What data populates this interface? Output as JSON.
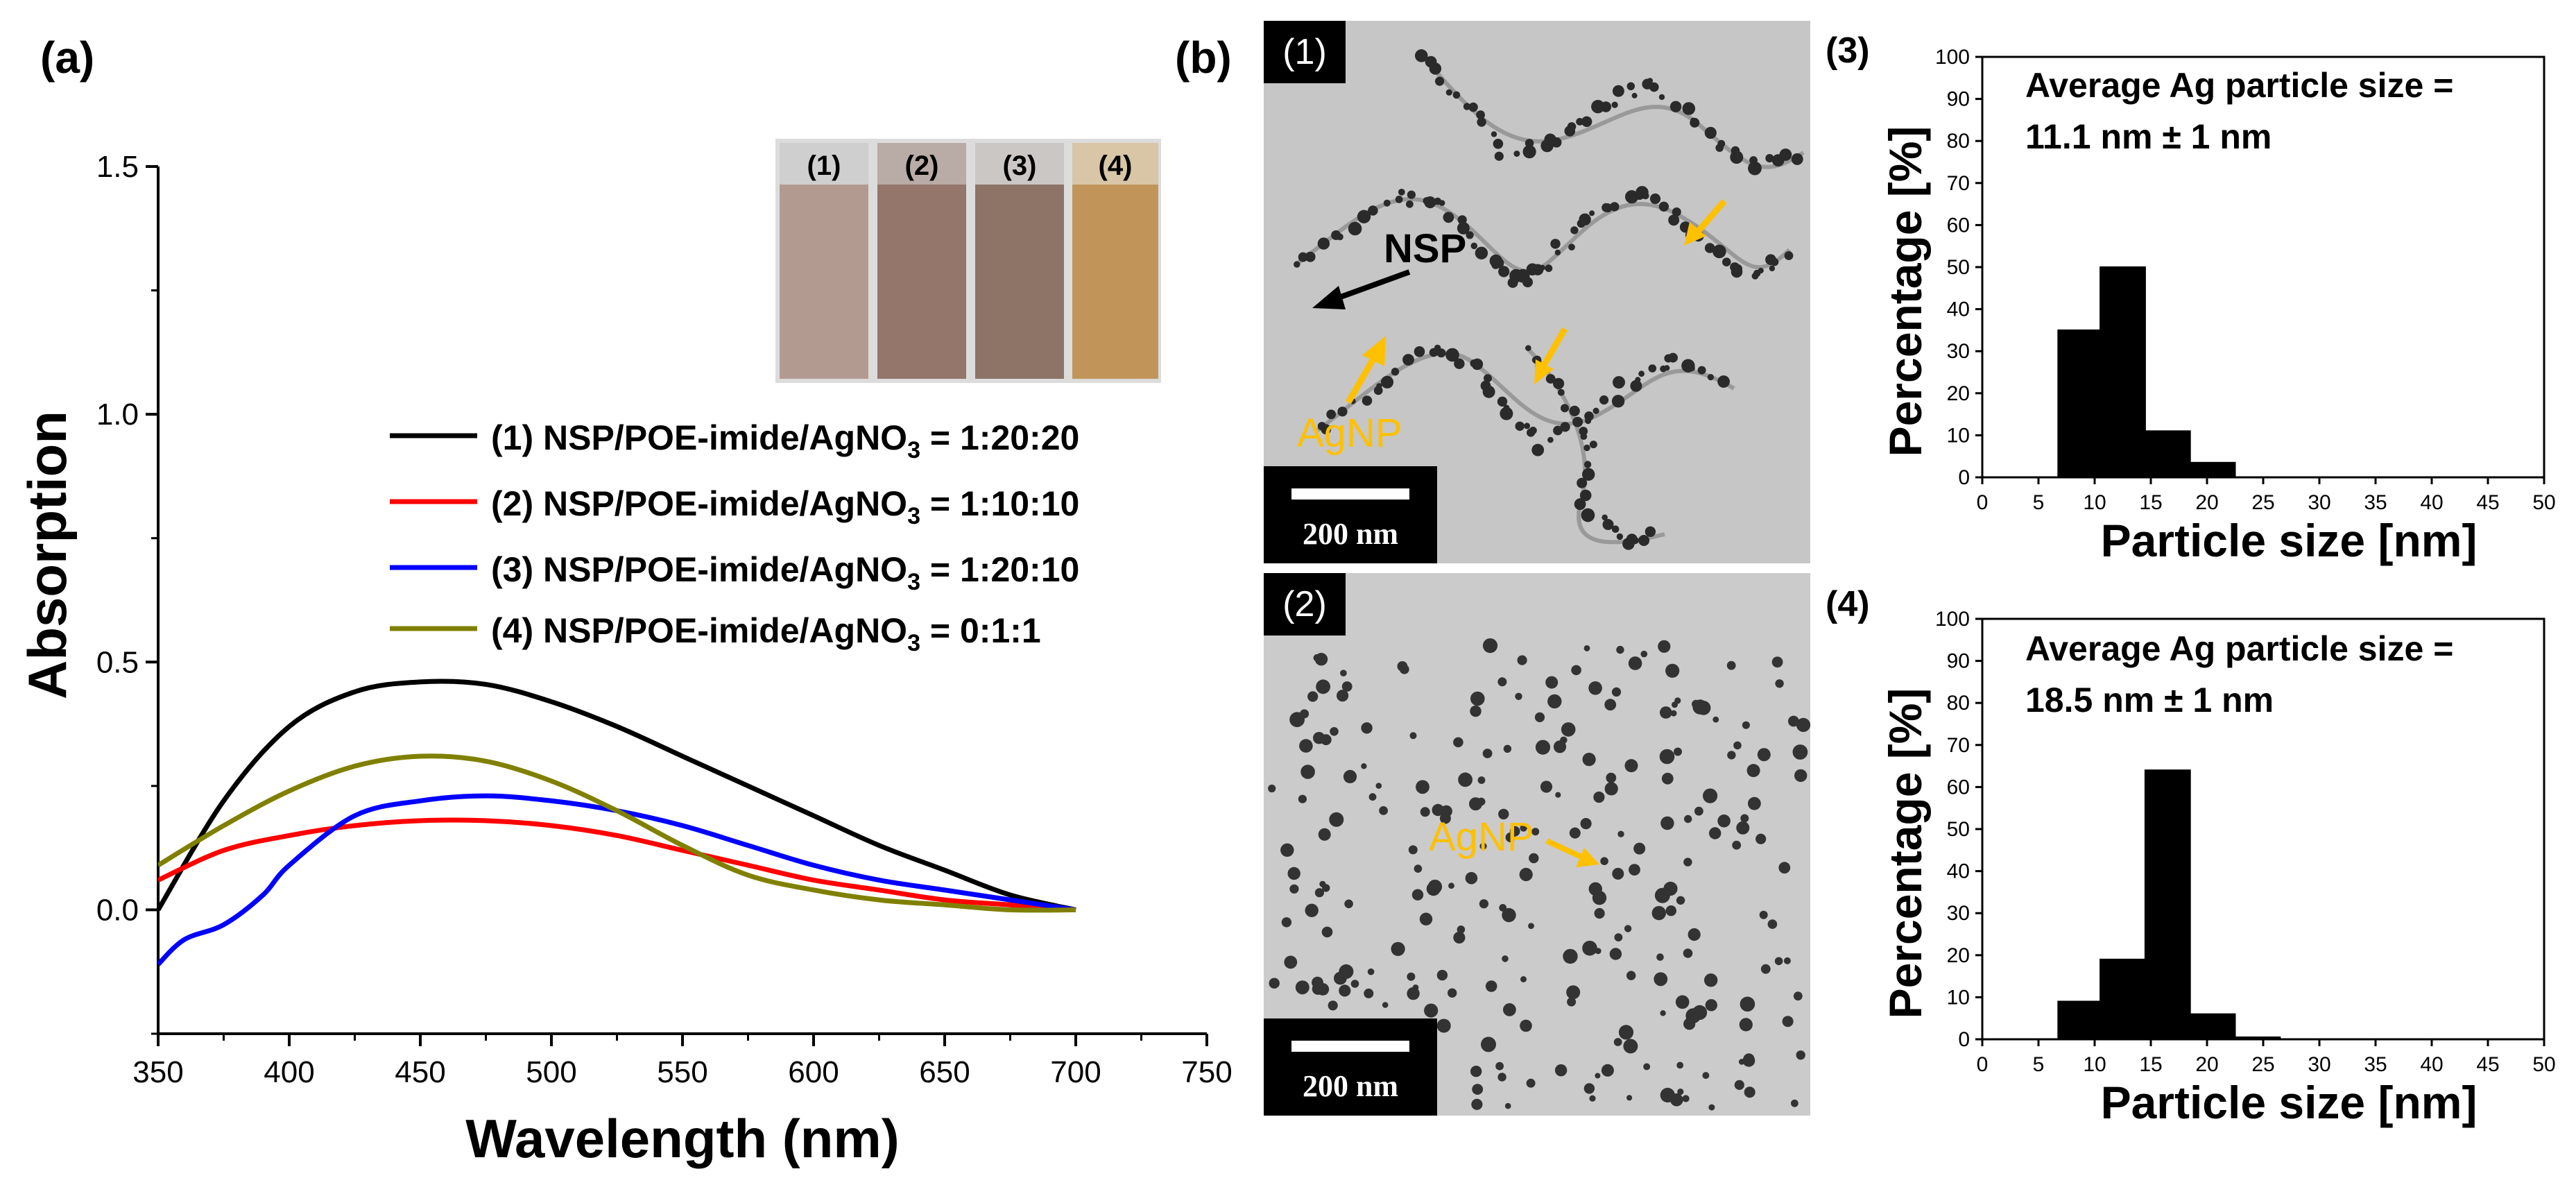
{
  "panel_a": {
    "label": "(a)",
    "cuvettes": [
      "(1)",
      "(2)",
      "(3)",
      "(4)"
    ],
    "legend": [
      {
        "prefix": "(1) NSP/POE-imide/AgNO",
        "sub": "3",
        "suffix": " = 1:20:20",
        "color": "#000000"
      },
      {
        "prefix": "(2) NSP/POE-imide/AgNO",
        "sub": "3",
        "suffix": " = 1:10:10",
        "color": "#ff0000"
      },
      {
        "prefix": "(3) NSP/POE-imide/AgNO",
        "sub": "3",
        "suffix": " = 1:20:10",
        "color": "#0000ff"
      },
      {
        "prefix": "(4) NSP/POE-imide/AgNO",
        "sub": "3",
        "suffix": " = 0:1:1",
        "color": "#808000"
      }
    ]
  },
  "panel_b": {
    "label": "(b)",
    "tem1": {
      "tag": "(1)",
      "scale": "200 nm",
      "nsp_label": "NSP",
      "agnp_label": "AgNP"
    },
    "tem2": {
      "tag": "(2)",
      "scale": "200 nm",
      "agnp_label": "AgNP"
    },
    "hist3_tag": "(3)",
    "hist4_tag": "(4)"
  },
  "chart_data": [
    {
      "type": "line",
      "xlabel": "Wavelength (nm)",
      "ylabel": "Absorption",
      "xlim": [
        350,
        750
      ],
      "ylim": [
        -0.25,
        1.5
      ],
      "xticks": [
        350,
        400,
        450,
        500,
        550,
        600,
        650,
        700,
        750
      ],
      "yticks": [
        0.0,
        0.5,
        1.0,
        1.5
      ],
      "ytick_labels": [
        "0.0",
        "0.5",
        "1.0",
        "1.5"
      ],
      "series": [
        {
          "name": "(1) NSP/POE-imide/AgNO3 = 1:20:20",
          "color": "#000000",
          "x": [
            350,
            375,
            400,
            425,
            450,
            475,
            500,
            525,
            550,
            575,
            600,
            625,
            650,
            675,
            700
          ],
          "y": [
            0.0,
            0.22,
            0.37,
            0.44,
            0.46,
            0.455,
            0.42,
            0.37,
            0.31,
            0.25,
            0.19,
            0.13,
            0.08,
            0.03,
            0.0
          ]
        },
        {
          "name": "(2) NSP/POE-imide/AgNO3 = 1:10:10",
          "color": "#ff0000",
          "x": [
            350,
            375,
            400,
            425,
            450,
            475,
            500,
            525,
            550,
            575,
            600,
            625,
            650,
            675,
            700
          ],
          "y": [
            0.06,
            0.12,
            0.15,
            0.17,
            0.18,
            0.18,
            0.17,
            0.15,
            0.12,
            0.09,
            0.06,
            0.04,
            0.02,
            0.01,
            0.0
          ]
        },
        {
          "name": "(3) NSP/POE-imide/AgNO3 = 1:20:10",
          "color": "#0000ff",
          "x": [
            350,
            360,
            375,
            390,
            400,
            425,
            450,
            475,
            500,
            525,
            550,
            575,
            600,
            625,
            650,
            675,
            700
          ],
          "y": [
            -0.11,
            -0.06,
            -0.03,
            0.03,
            0.09,
            0.19,
            0.22,
            0.23,
            0.22,
            0.2,
            0.17,
            0.13,
            0.09,
            0.06,
            0.04,
            0.02,
            0.0
          ]
        },
        {
          "name": "(4) NSP/POE-imide/AgNO3 = 0:1:1",
          "color": "#808000",
          "x": [
            350,
            375,
            400,
            425,
            450,
            475,
            500,
            525,
            550,
            575,
            600,
            625,
            650,
            675,
            700
          ],
          "y": [
            0.09,
            0.17,
            0.24,
            0.29,
            0.31,
            0.3,
            0.26,
            0.2,
            0.13,
            0.07,
            0.04,
            0.02,
            0.01,
            0.0,
            0.0
          ]
        }
      ]
    },
    {
      "type": "bar",
      "title": "(3)",
      "annotation": [
        "Average Ag particle size =",
        "11.1 nm ± 1 nm"
      ],
      "xlabel": "Particle size [nm]",
      "ylabel": "Percentage [%]",
      "xlim": [
        0,
        50
      ],
      "ylim": [
        0,
        100
      ],
      "xticks": [
        0,
        5,
        10,
        15,
        20,
        25,
        30,
        35,
        40,
        45,
        50
      ],
      "yticks": [
        0,
        10,
        20,
        30,
        40,
        50,
        60,
        70,
        80,
        90,
        100
      ],
      "bars": [
        {
          "center": 8.75,
          "width": 4,
          "value": 35
        },
        {
          "center": 12.5,
          "width": 4,
          "value": 50
        },
        {
          "center": 16.5,
          "width": 4,
          "value": 11
        },
        {
          "center": 20.5,
          "width": 4,
          "value": 3.5
        }
      ]
    },
    {
      "type": "bar",
      "title": "(4)",
      "annotation": [
        "Average Ag particle size =",
        "18.5 nm ± 1 nm"
      ],
      "xlabel": "Particle size [nm]",
      "ylabel": "Percentage [%]",
      "xlim": [
        0,
        50
      ],
      "ylim": [
        0,
        100
      ],
      "xticks": [
        0,
        5,
        10,
        15,
        20,
        25,
        30,
        35,
        40,
        45,
        50
      ],
      "yticks": [
        0,
        10,
        20,
        30,
        40,
        50,
        60,
        70,
        80,
        90,
        100
      ],
      "bars": [
        {
          "center": 8.75,
          "width": 4,
          "value": 9
        },
        {
          "center": 12.5,
          "width": 4,
          "value": 19
        },
        {
          "center": 16.5,
          "width": 4,
          "value": 64
        },
        {
          "center": 20.5,
          "width": 4,
          "value": 6
        },
        {
          "center": 24.5,
          "width": 4,
          "value": 0.5
        }
      ]
    }
  ]
}
